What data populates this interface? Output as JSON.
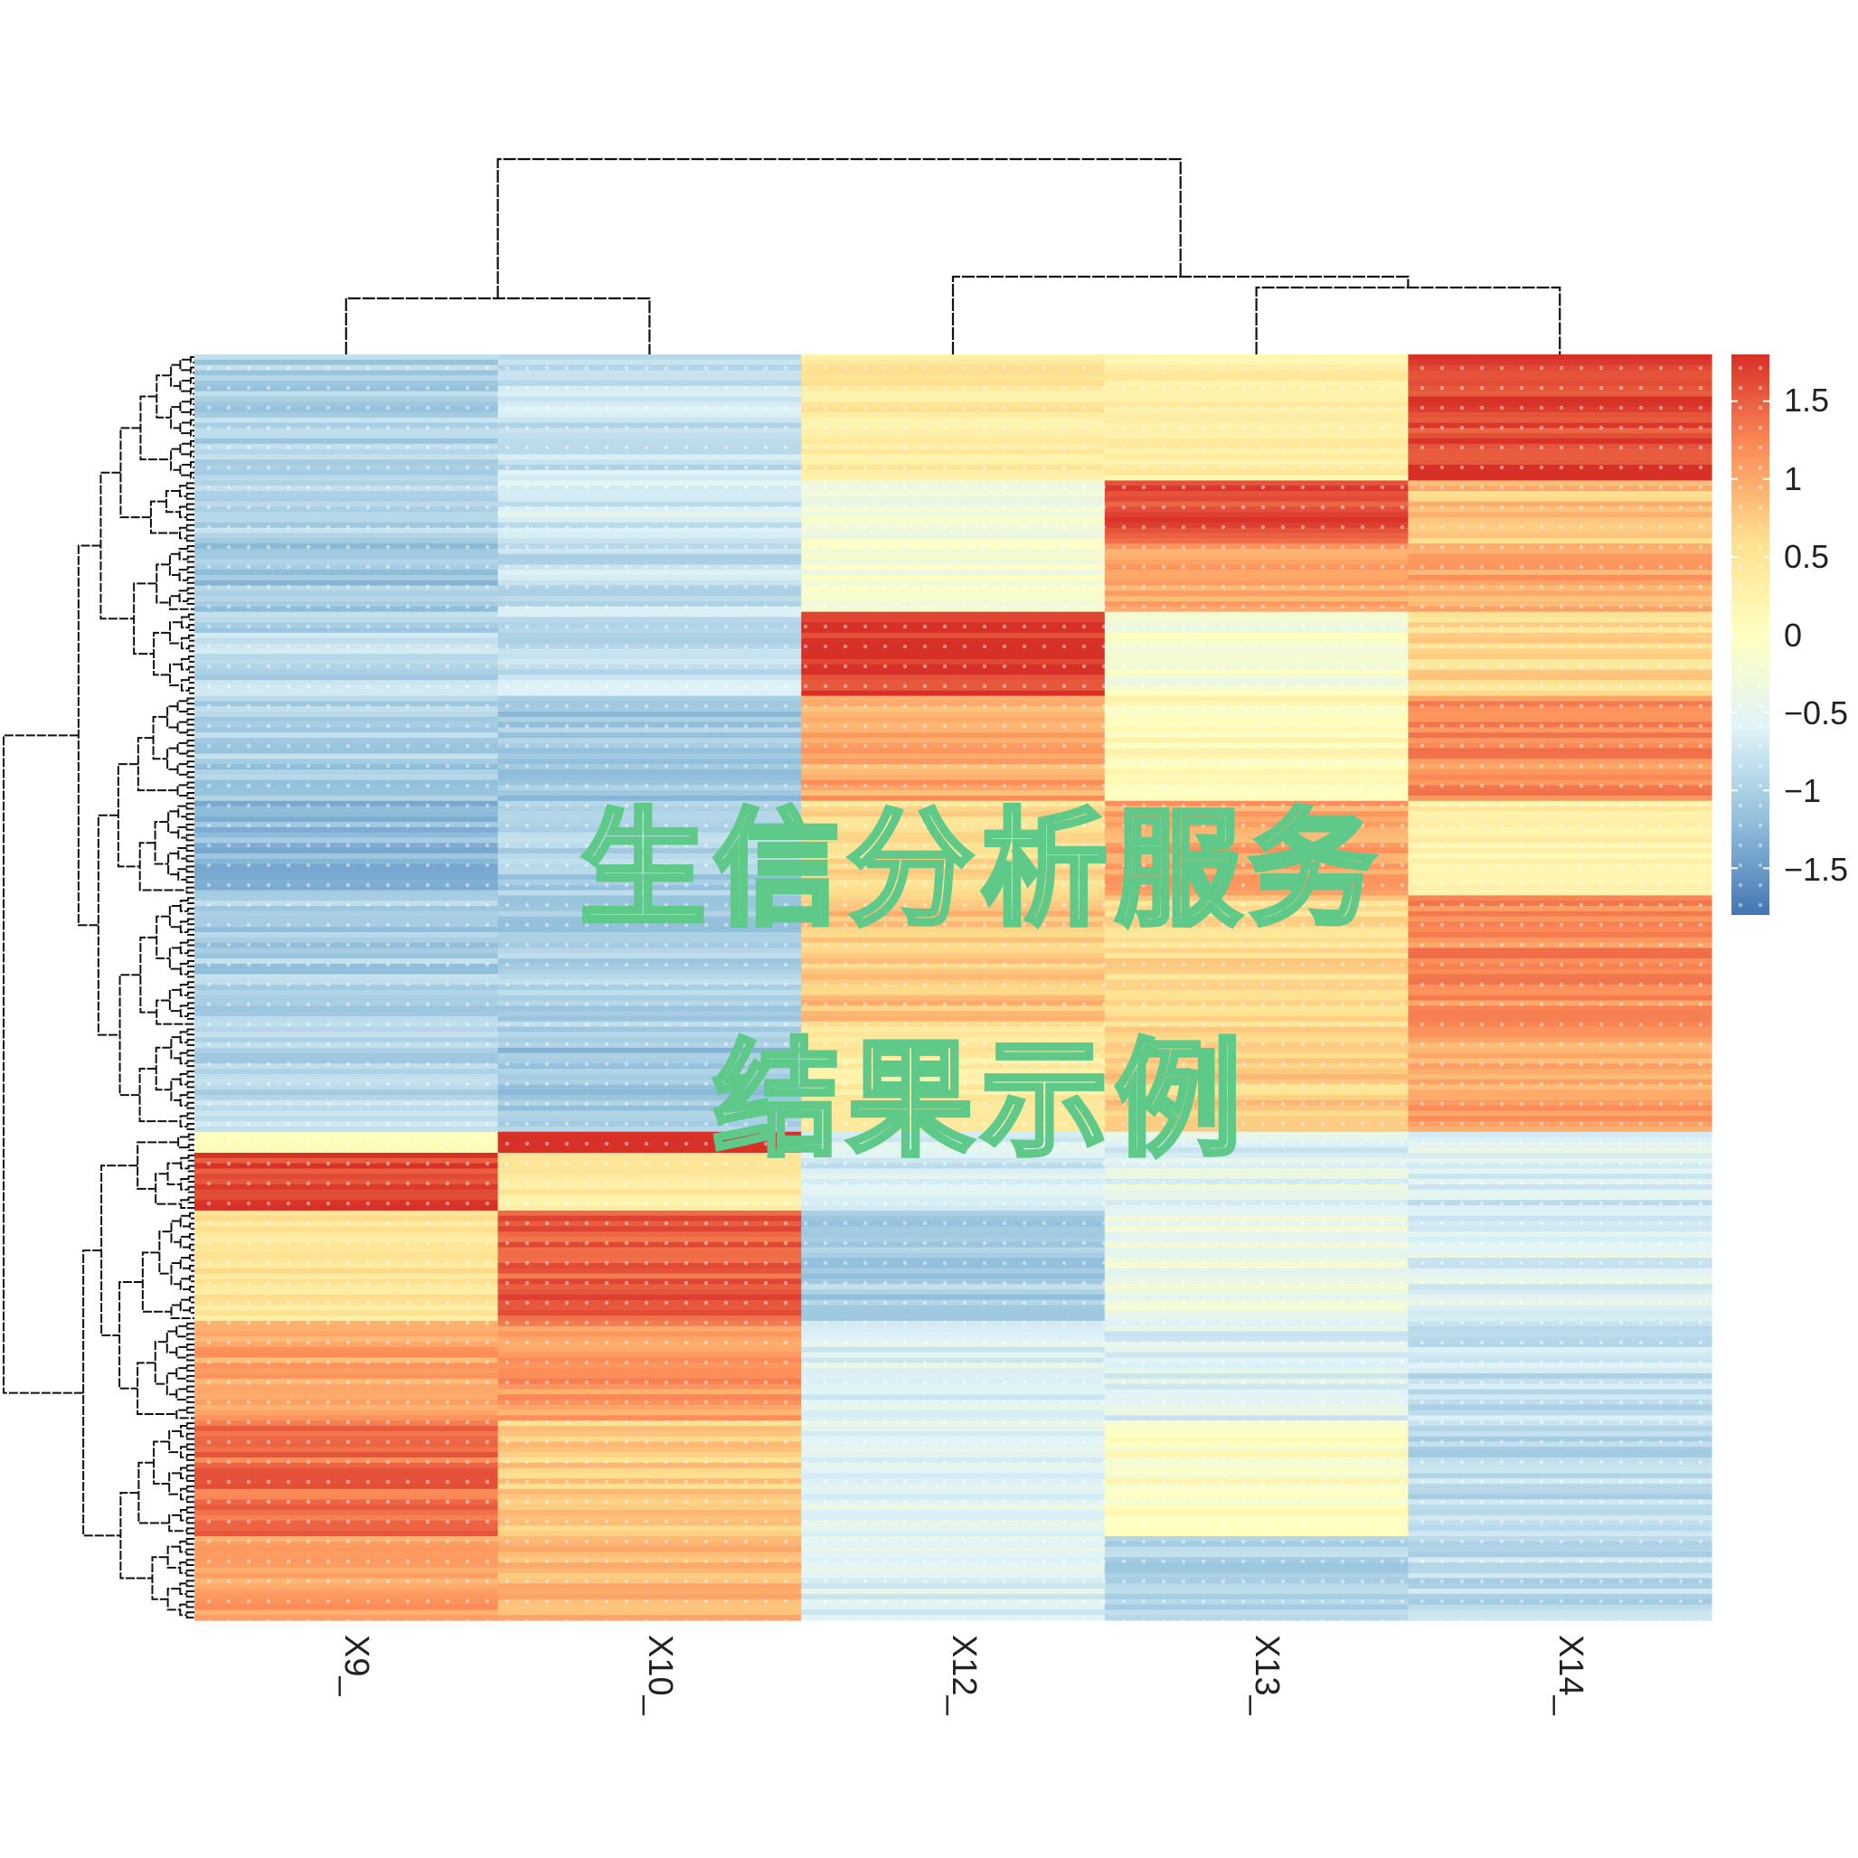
{
  "chart_data": {
    "type": "heatmap",
    "title": "",
    "columns": [
      "X9_",
      "X10_",
      "X12_",
      "X13_",
      "X14_"
    ],
    "column_dendrogram": [
      [
        "X9_",
        "X10_"
      ],
      [
        [
          "X12_"
        ],
        [
          "X13_",
          "X14_"
        ]
      ]
    ],
    "row_dendrogram": "shown (rows clustered, row labels not shown)",
    "row_blocks": [
      {
        "rows": 24,
        "values": [
          -1.0,
          -0.8,
          0.4,
          0.3,
          1.6
        ]
      },
      {
        "rows": 12,
        "values": [
          -0.9,
          -0.7,
          -0.3,
          1.6,
          0.8
        ]
      },
      {
        "rows": 13,
        "values": [
          -1.1,
          -0.8,
          -0.2,
          1.0,
          1.0
        ]
      },
      {
        "rows": 16,
        "values": [
          -0.9,
          -0.8,
          1.7,
          -0.2,
          0.6
        ]
      },
      {
        "rows": 20,
        "values": [
          -1.0,
          -1.1,
          1.0,
          0.1,
          1.2
        ]
      },
      {
        "rows": 18,
        "values": [
          -1.2,
          -1.0,
          0.6,
          1.0,
          0.3
        ]
      },
      {
        "rows": 25,
        "values": [
          -1.0,
          -1.0,
          0.8,
          0.6,
          1.2
        ]
      },
      {
        "rows": 20,
        "values": [
          -0.9,
          -1.1,
          0.4,
          0.7,
          1.0
        ]
      },
      {
        "rows": 4,
        "values": [
          0.1,
          1.8,
          -0.6,
          -0.6,
          -0.5
        ]
      },
      {
        "rows": 11,
        "values": [
          1.7,
          0.4,
          -0.7,
          -0.5,
          -0.7
        ]
      },
      {
        "rows": 21,
        "values": [
          0.5,
          1.5,
          -1.0,
          -0.4,
          -0.6
        ]
      },
      {
        "rows": 19,
        "values": [
          1.0,
          1.1,
          -0.6,
          -0.6,
          -0.8
        ]
      },
      {
        "rows": 22,
        "values": [
          1.4,
          0.7,
          -0.6,
          0.0,
          -0.9
        ]
      },
      {
        "rows": 16,
        "values": [
          1.1,
          0.9,
          -0.6,
          -1.0,
          -0.9
        ]
      }
    ],
    "colorbar": {
      "min": -1.8,
      "max": 1.8,
      "ticks": [
        1.5,
        1,
        0.5,
        0,
        -0.5,
        -1,
        -1.5
      ],
      "tick_labels": [
        "1.5",
        "1",
        "0.5",
        "0",
        "−0.5",
        "−1",
        "−1.5"
      ],
      "colors": [
        "#4575b4",
        "#91bfdb",
        "#e0f3f8",
        "#ffffbf",
        "#fee090",
        "#fc8d59",
        "#d73027"
      ]
    },
    "watermark": {
      "line1": "生信分析服务",
      "line2": "结果示例",
      "color": "#5fc98a"
    }
  }
}
